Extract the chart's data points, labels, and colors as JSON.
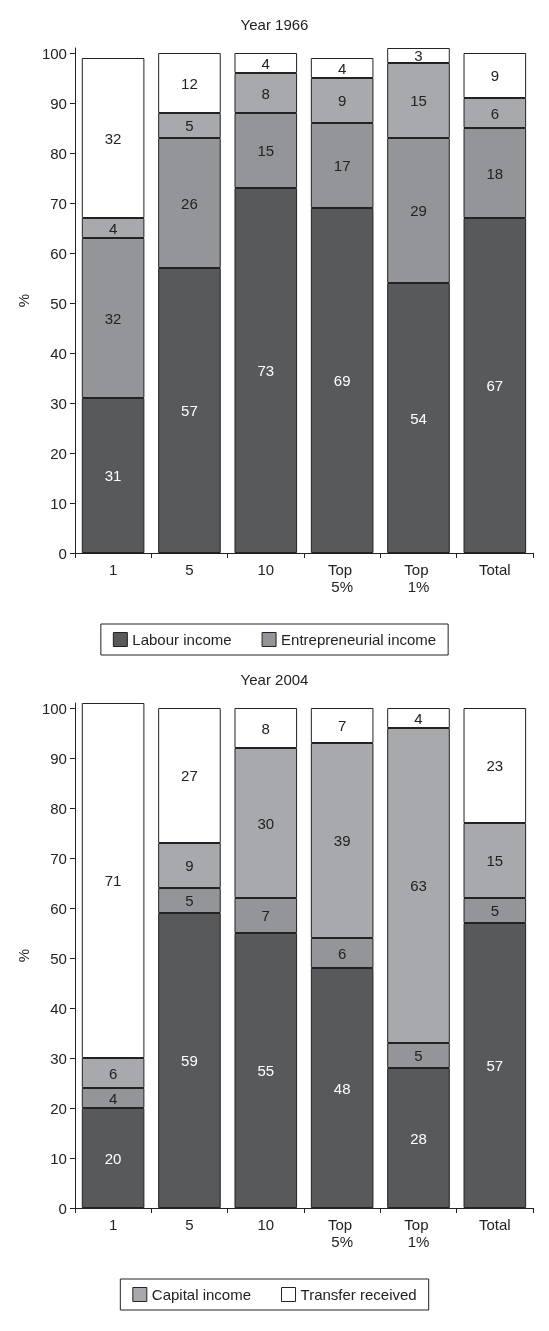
{
  "chart_data": [
    {
      "type": "bar",
      "title": "Year 1966",
      "ylabel": "%",
      "categories": [
        "1",
        "5",
        "10",
        "Top 5%",
        "Top 1%",
        "Total"
      ],
      "stacked": true,
      "data_labels": true,
      "legend": "bottom",
      "grid": false,
      "ylim": [
        0,
        101
      ],
      "yticks": [
        0,
        10,
        20,
        30,
        40,
        50,
        60,
        70,
        80,
        90,
        100
      ],
      "series": [
        {
          "name": "Labour income",
          "color": "#58595b",
          "values": [
            31,
            57,
            73,
            69,
            54,
            67
          ]
        },
        {
          "name": "Entrepreneurial income",
          "color": "#939598",
          "values": [
            32,
            26,
            15,
            17,
            29,
            18
          ]
        },
        {
          "color": "#a7a9ac",
          "values": [
            4,
            5,
            8,
            9,
            15,
            6
          ]
        },
        {
          "color": "#ffffff",
          "values": [
            32,
            12,
            4,
            4,
            3,
            9
          ]
        }
      ]
    },
    {
      "type": "bar",
      "title": "Year 2004",
      "ylabel": "%",
      "categories": [
        "1",
        "5",
        "10",
        "Top 5%",
        "Top 1%",
        "Total"
      ],
      "stacked": true,
      "data_labels": true,
      "legend": "bottom",
      "grid": false,
      "ylim": [
        0,
        101
      ],
      "yticks": [
        0,
        10,
        20,
        30,
        40,
        50,
        60,
        70,
        80,
        90,
        100
      ],
      "series": [
        {
          "color": "#58595b",
          "values": [
            20,
            59,
            55,
            48,
            28,
            57
          ]
        },
        {
          "color": "#939598",
          "values": [
            4,
            5,
            7,
            6,
            5,
            5
          ]
        },
        {
          "name": "Capital income",
          "color": "#a7a9ac",
          "values": [
            6,
            9,
            30,
            39,
            63,
            15
          ]
        },
        {
          "name": "Transfer received",
          "color": "#ffffff",
          "values": [
            71,
            27,
            8,
            7,
            4,
            23
          ]
        }
      ]
    }
  ]
}
